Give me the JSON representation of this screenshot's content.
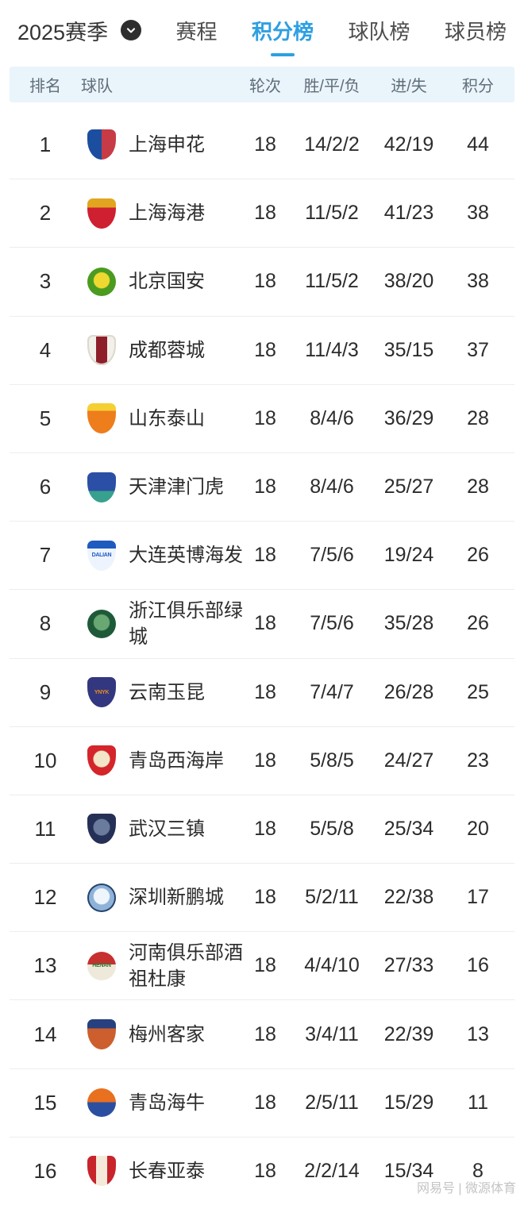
{
  "header": {
    "season_label": "2025赛季"
  },
  "tabs": [
    {
      "label": "赛程",
      "active": false
    },
    {
      "label": "积分榜",
      "active": true
    },
    {
      "label": "球队榜",
      "active": false
    },
    {
      "label": "球员榜",
      "active": false
    }
  ],
  "table": {
    "columns": {
      "rank": "排名",
      "team": "球队",
      "rounds": "轮次",
      "wdl": "胜/平/负",
      "goals": "进/失",
      "points": "积分"
    },
    "rows": [
      {
        "rank": "1",
        "team": "上海申花",
        "rounds": "18",
        "wdl": "14/2/2",
        "goals": "42/19",
        "points": "44",
        "logo": {
          "shape": "shield",
          "mode": "h",
          "c1": "#1c4ea0",
          "c2": "#c73b47"
        }
      },
      {
        "rank": "2",
        "team": "上海海港",
        "rounds": "18",
        "wdl": "11/5/2",
        "goals": "41/23",
        "points": "38",
        "logo": {
          "shape": "shield",
          "mode": "v",
          "split": 30,
          "c1": "#e2a51f",
          "c2": "#ce2030"
        }
      },
      {
        "rank": "3",
        "team": "北京国安",
        "rounds": "18",
        "wdl": "11/5/2",
        "goals": "38/20",
        "points": "38",
        "logo": {
          "shape": "circle",
          "mode": "radial",
          "c1": "#efd930",
          "c2": "#4a9b20"
        }
      },
      {
        "rank": "4",
        "team": "成都蓉城",
        "rounds": "18",
        "wdl": "11/4/3",
        "goals": "35/15",
        "points": "37",
        "logo": {
          "shape": "shield",
          "mode": "stripe",
          "c1": "#8e1f2a",
          "c2": "#f3f0ea",
          "bd": "#ddd8cf"
        }
      },
      {
        "rank": "5",
        "team": "山东泰山",
        "rounds": "18",
        "wdl": "8/4/6",
        "goals": "36/29",
        "points": "28",
        "logo": {
          "shape": "shield",
          "mode": "v",
          "split": 25,
          "c1": "#f5d033",
          "c2": "#ee7d1c"
        }
      },
      {
        "rank": "6",
        "team": "天津津门虎",
        "rounds": "18",
        "wdl": "8/4/6",
        "goals": "25/27",
        "points": "28",
        "logo": {
          "shape": "shield",
          "mode": "v",
          "split": 62,
          "c1": "#2b4fa5",
          "c2": "#37a18e"
        }
      },
      {
        "rank": "7",
        "team": "大连英博海发",
        "rounds": "18",
        "wdl": "7/5/6",
        "goals": "19/24",
        "points": "26",
        "logo": {
          "shape": "shield",
          "mode": "v",
          "split": 26,
          "c1": "#1f5bbf",
          "c2": "#eef4fd",
          "text": "DALIAN",
          "tc": "#1f5bbf"
        }
      },
      {
        "rank": "8",
        "team": "浙江俱乐部绿城",
        "rounds": "18",
        "wdl": "7/5/6",
        "goals": "35/28",
        "points": "26",
        "logo": {
          "shape": "circle",
          "mode": "radial",
          "c1": "#69a872",
          "c2": "#1e5a38"
        }
      },
      {
        "rank": "9",
        "team": "云南玉昆",
        "rounds": "18",
        "wdl": "7/4/7",
        "goals": "26/28",
        "points": "25",
        "logo": {
          "shape": "shield",
          "mode": "solid",
          "c2": "#33377f",
          "text": "YNYK",
          "tc": "#ef8c1e"
        }
      },
      {
        "rank": "10",
        "team": "青岛西海岸",
        "rounds": "18",
        "wdl": "5/8/5",
        "goals": "24/27",
        "points": "23",
        "logo": {
          "shape": "shield",
          "mode": "radial",
          "c1": "#f3e6c8",
          "c2": "#d4252a"
        }
      },
      {
        "rank": "11",
        "team": "武汉三镇",
        "rounds": "18",
        "wdl": "5/5/8",
        "goals": "25/34",
        "points": "20",
        "logo": {
          "shape": "shield",
          "mode": "radial",
          "c1": "#6a7b9e",
          "c2": "#243055"
        }
      },
      {
        "rank": "12",
        "team": "深圳新鹏城",
        "rounds": "18",
        "wdl": "5/2/11",
        "goals": "22/38",
        "points": "17",
        "logo": {
          "shape": "circle",
          "mode": "radial",
          "c1": "#eef6fb",
          "c2": "#8fb3d8",
          "bd": "#25456f"
        }
      },
      {
        "rank": "13",
        "team": "河南俱乐部酒祖杜康",
        "rounds": "18",
        "wdl": "4/4/10",
        "goals": "27/33",
        "points": "16",
        "logo": {
          "shape": "circle",
          "mode": "v",
          "split": 45,
          "c1": "#c6302f",
          "c2": "#efe9dc",
          "text": "HENAN",
          "tc": "#2f7d32"
        }
      },
      {
        "rank": "14",
        "team": "梅州客家",
        "rounds": "18",
        "wdl": "3/4/11",
        "goals": "22/39",
        "points": "13",
        "logo": {
          "shape": "shield",
          "mode": "v",
          "split": 30,
          "c1": "#27407f",
          "c2": "#cc5f2d"
        }
      },
      {
        "rank": "15",
        "team": "青岛海牛",
        "rounds": "18",
        "wdl": "2/5/11",
        "goals": "15/29",
        "points": "11",
        "logo": {
          "shape": "circle",
          "mode": "v",
          "split": 48,
          "c1": "#e8701f",
          "c2": "#2b4fa0"
        }
      },
      {
        "rank": "16",
        "team": "长春亚泰",
        "rounds": "18",
        "wdl": "2/2/14",
        "goals": "15/34",
        "points": "8",
        "logo": {
          "shape": "shield",
          "mode": "stripe",
          "c1": "#f5ead9",
          "c2": "#c8242b"
        }
      }
    ]
  },
  "footer": {
    "watermark": "网易号 | 微源体育"
  },
  "colors": {
    "accent": "#2e9fe2",
    "header_bg": "#eaf4fb",
    "row_divider": "#ededed",
    "text_primary": "#2c2c2c",
    "text_secondary": "#5f6e79",
    "watermark": "#c4c4c4",
    "dropdown_circle": "#2e2e2e"
  }
}
